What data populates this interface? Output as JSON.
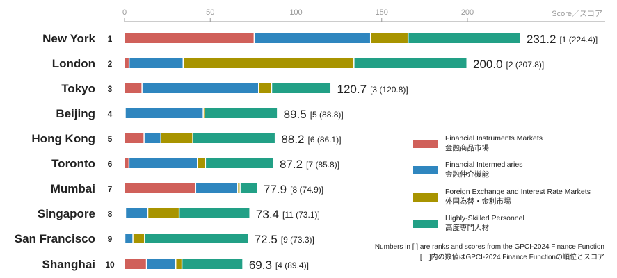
{
  "chart_data": {
    "type": "bar",
    "stacked": true,
    "orientation": "horizontal",
    "axis_label": "Score／スコア",
    "xlim": [
      0,
      235
    ],
    "ticks": [
      0,
      50,
      100,
      150,
      200
    ],
    "categories": [
      "New York",
      "London",
      "Tokyo",
      "Beijing",
      "Hong Kong",
      "Toronto",
      "Mumbai",
      "Singapore",
      "San Francisco",
      "Shanghai"
    ],
    "ranks": [
      "1",
      "2",
      "3",
      "4",
      "5",
      "6",
      "7",
      "8",
      "9",
      "10"
    ],
    "totals": [
      "231.2",
      "200.0",
      "120.7",
      "89.5",
      "88.2",
      "87.2",
      "77.9",
      "73.4",
      "72.5",
      "69.3"
    ],
    "previous": [
      "[1 (224.4)]",
      "[2 (207.8)]",
      "[3 (120.8)]",
      "[5 (88.8)]",
      "[6 (86.1)]",
      "[7 (85.8)]",
      "[8 (74.9)]",
      "[11 (73.1)]",
      "[9 (73.3)]",
      "[4 (89.4)]"
    ],
    "series": [
      {
        "name": "Financial Instruments Markets",
        "name_ja": "金融商品市場",
        "color": "#d0605a",
        "values": [
          75.9,
          3.0,
          10.5,
          0.7,
          11.7,
          2.9,
          41.8,
          0.9,
          0.5,
          13.1
        ]
      },
      {
        "name": "Financial Intermediaries",
        "name_ja": "金融仲介機能",
        "color": "#2f86bf",
        "values": [
          67.9,
          31.5,
          68.0,
          45.5,
          9.8,
          39.9,
          24.5,
          13.0,
          4.7,
          17.1
        ]
      },
      {
        "name": "Foreign Exchange and Interest Rate Markets",
        "name_ja": "外国為替・金利市場",
        "color": "#a89400",
        "values": [
          21.9,
          99.6,
          7.6,
          0.7,
          18.6,
          4.7,
          1.4,
          18.3,
          6.8,
          3.6
        ]
      },
      {
        "name": "Highly-Skilled Personnel",
        "name_ja": "高度専門人材",
        "color": "#22a086",
        "values": [
          65.5,
          65.9,
          34.6,
          42.6,
          48.1,
          39.7,
          10.2,
          41.2,
          60.5,
          35.5
        ]
      }
    ],
    "notes": [
      "Numbers in [ ] are ranks and scores from the GPCI-2024 Finance Function",
      "[　]内の数値はGPCI-2024 Finance Functionの順位とスコア"
    ]
  }
}
